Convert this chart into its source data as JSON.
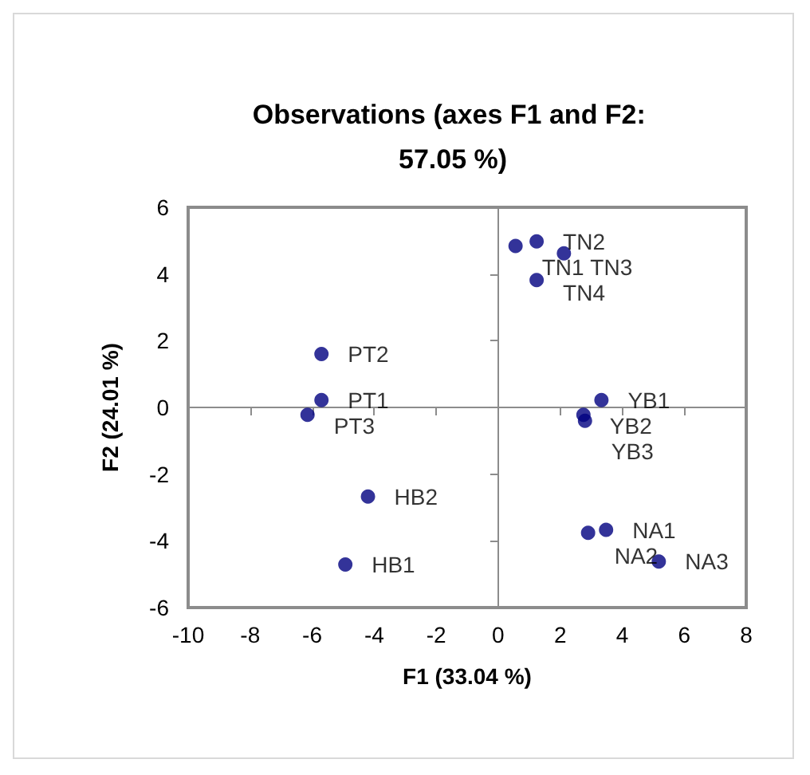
{
  "chart_data": {
    "type": "scatter",
    "title": "Observations (axes F1 and F2: 57.05 %)",
    "xlabel": "F1 (33.04 %)",
    "ylabel": "F2 (24.01 %)",
    "x": [
      0.56,
      1.24,
      2.12,
      1.24,
      -5.7,
      -5.7,
      -6.15,
      -4.2,
      -4.93,
      3.33,
      2.75,
      2.8,
      3.48,
      2.9,
      5.18
    ],
    "values": [
      4.84,
      4.98,
      4.62,
      3.82,
      1.6,
      0.22,
      -0.22,
      -2.67,
      -4.71,
      0.22,
      -0.22,
      -0.4,
      -3.67,
      -3.76,
      -4.62
    ],
    "value_labels": [
      "TN1",
      "TN2",
      "TN3",
      "TN4",
      "PT2",
      "PT1",
      "PT3",
      "HB2",
      "HB1",
      "YB1",
      "YB2",
      "YB3",
      "NA1",
      "NA2",
      "NA3"
    ],
    "color": "#000080",
    "marker": "circle",
    "xlim": [
      -10,
      8
    ],
    "xticks": [
      -10,
      -8,
      -6,
      -4,
      -2,
      0,
      2,
      4,
      6,
      8
    ],
    "ylim": [
      -6,
      6
    ],
    "yticks": [
      -6,
      -4,
      -2,
      0,
      2,
      4,
      6
    ]
  }
}
